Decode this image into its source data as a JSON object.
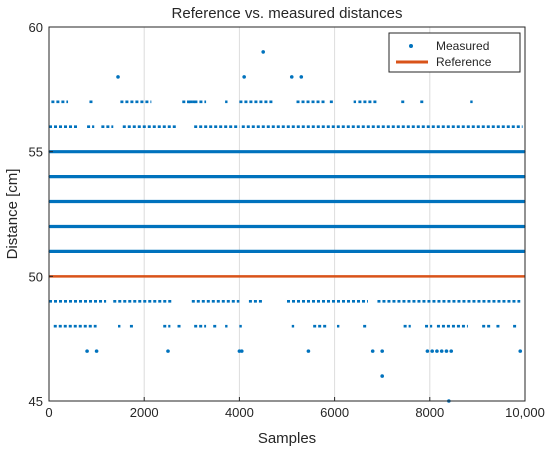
{
  "chart_data": {
    "type": "scatter",
    "title": "Reference vs. measured distances",
    "xlabel": "Samples",
    "ylabel": "Distance [cm]",
    "xlim": [
      0,
      10000
    ],
    "ylim": [
      45,
      60
    ],
    "xticks": [
      0,
      2000,
      4000,
      6000,
      8000,
      10000
    ],
    "xtick_labels": [
      "0",
      "2000",
      "4000",
      "6000",
      "8000",
      "10,000"
    ],
    "yticks": [
      45,
      50,
      55,
      60
    ],
    "grid": "vertical lines only",
    "legend_position": "top-right",
    "series": [
      {
        "name": "Measured",
        "kind": "points",
        "color": "#0072BD",
        "dense_levels": [
          51,
          52,
          53,
          54,
          55
        ],
        "points": [
          [
            800,
            47
          ],
          [
            1000,
            47
          ],
          [
            2500,
            47
          ],
          [
            4000,
            47
          ],
          [
            4050,
            47
          ],
          [
            5450,
            47
          ],
          [
            6800,
            47
          ],
          [
            7000,
            47
          ],
          [
            7950,
            47
          ],
          [
            8050,
            47
          ],
          [
            8150,
            47
          ],
          [
            8250,
            47
          ],
          [
            8350,
            47
          ],
          [
            8450,
            47
          ],
          [
            9900,
            47
          ],
          [
            7000,
            46
          ],
          [
            8400,
            45
          ],
          [
            1450,
            58
          ],
          [
            4100,
            58
          ],
          [
            4500,
            59
          ],
          [
            5100,
            58
          ],
          [
            5300,
            58
          ]
        ],
        "sparse_ranges": [
          {
            "y": 57,
            "ranges": [
              [
                50,
                400
              ],
              [
                850,
                950
              ],
              [
                1500,
                2150
              ],
              [
                2800,
                3100
              ],
              [
                2900,
                3000
              ],
              [
                2950,
                3300
              ],
              [
                3700,
                3750
              ],
              [
                4000,
                4700
              ],
              [
                5200,
                5800
              ],
              [
                5900,
                6000
              ],
              [
                6400,
                6450
              ],
              [
                6500,
                6900
              ],
              [
                7400,
                7500
              ],
              [
                7800,
                7900
              ],
              [
                8850,
                8900
              ]
            ]
          },
          {
            "y": 56,
            "ranges": [
              [
                0,
                600
              ],
              [
                800,
                950
              ],
              [
                1100,
                1350
              ],
              [
                1550,
                2700
              ],
              [
                3050,
                4000
              ],
              [
                4050,
                9950
              ]
            ]
          },
          {
            "y": 49,
            "ranges": [
              [
                0,
                1200
              ],
              [
                1350,
                2600
              ],
              [
                3000,
                4000
              ],
              [
                4200,
                4500
              ],
              [
                5000,
                6700
              ],
              [
                6900,
                9900
              ]
            ]
          },
          {
            "y": 48,
            "ranges": [
              [
                100,
                1000
              ],
              [
                1450,
                1500
              ],
              [
                1700,
                1800
              ],
              [
                2400,
                2550
              ],
              [
                2700,
                2800
              ],
              [
                3050,
                3300
              ],
              [
                3450,
                3550
              ],
              [
                3700,
                3750
              ],
              [
                4000,
                4050
              ],
              [
                5100,
                5150
              ],
              [
                5550,
                5850
              ],
              [
                6050,
                6100
              ],
              [
                6600,
                6700
              ],
              [
                7450,
                7600
              ],
              [
                7900,
                8050
              ],
              [
                8150,
                8800
              ],
              [
                9100,
                9300
              ],
              [
                9400,
                9500
              ],
              [
                9750,
                9850
              ]
            ]
          }
        ]
      },
      {
        "name": "Reference",
        "kind": "line",
        "color": "#D95319",
        "x": [
          0,
          10000
        ],
        "y": [
          50,
          50
        ]
      }
    ]
  }
}
